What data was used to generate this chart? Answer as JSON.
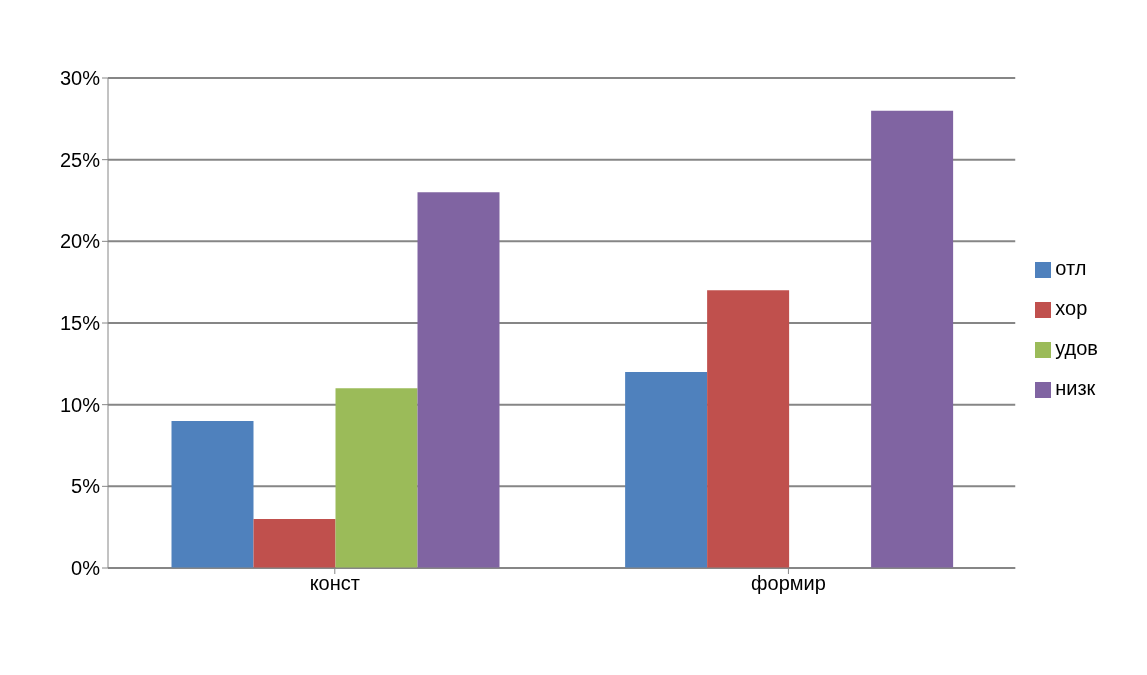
{
  "chart_data": {
    "type": "bar",
    "categories": [
      "конст",
      "формир"
    ],
    "series": [
      {
        "name": "отл",
        "color": "#4f81bd",
        "values": [
          9,
          12
        ]
      },
      {
        "name": "хор",
        "color": "#c0504d",
        "values": [
          3,
          17
        ]
      },
      {
        "name": "удов",
        "color": "#9bbb59",
        "values": [
          11,
          0
        ]
      },
      {
        "name": "низк",
        "color": "#8064a2",
        "values": [
          23,
          28
        ]
      }
    ],
    "ylim": [
      0,
      30
    ],
    "yticks": [
      {
        "value": 0,
        "label": "0%"
      },
      {
        "value": 5,
        "label": "5%"
      },
      {
        "value": 10,
        "label": "10%"
      },
      {
        "value": 15,
        "label": "15%"
      },
      {
        "value": 20,
        "label": "20%"
      },
      {
        "value": 25,
        "label": "25%"
      },
      {
        "value": 30,
        "label": "30%"
      }
    ],
    "grid": "y",
    "legend": "right"
  }
}
